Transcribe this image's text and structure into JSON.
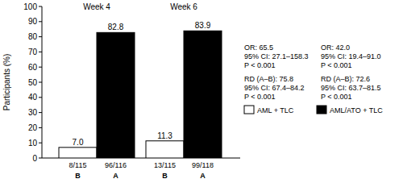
{
  "chart_data": {
    "type": "bar",
    "ylabel": "Participants (%)",
    "categories": [
      "Week 4",
      "Week 6"
    ],
    "series": [
      {
        "name": "AML + TLC",
        "color": "#ffffff",
        "values": [
          7.0,
          11.3
        ],
        "value_labels": [
          "7.0",
          "11.3"
        ],
        "counts": [
          "8/115",
          "13/115"
        ],
        "group": "B"
      },
      {
        "name": "AML/ATO + TLC",
        "color": "#000000",
        "values": [
          82.8,
          83.9
        ],
        "value_labels": [
          "82.8",
          "83.9"
        ],
        "counts": [
          "96/116",
          "99/118"
        ],
        "group": "A"
      }
    ],
    "ylim": [
      0,
      100
    ],
    "yticks": [
      0,
      10,
      20,
      30,
      40,
      50,
      60,
      70,
      80,
      90,
      100
    ],
    "data_labels": true,
    "legend": "right",
    "annotations": [
      [
        "OR: 65.5",
        "95% CI: 27.1–158.3",
        "P < 0.001",
        "RD (A–B): 75.8",
        "95% CI: 67.4–84.2",
        "P < 0.001"
      ],
      [
        "OR: 42.0",
        "95% CI: 19.4–91.0",
        "P < 0.001",
        "RD (A–B): 72.6",
        "95% CI: 63.7–81.5",
        "P < 0.001"
      ]
    ]
  }
}
